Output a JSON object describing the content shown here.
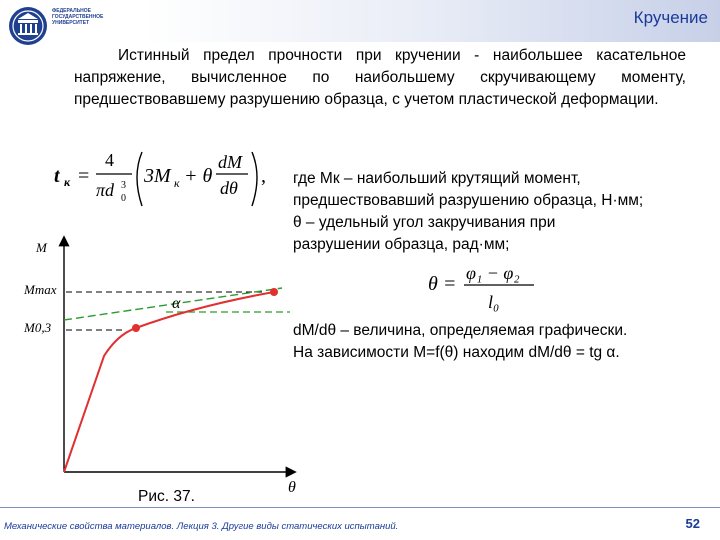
{
  "header": {
    "title": "Кручение",
    "logo_lines": [
      "ФЕДЕРАЛЬНОЕ",
      "ГОСУДАРСТВЕННОЕ",
      "УНИВЕРСИТЕТ"
    ]
  },
  "paragraph": "Истинный предел прочности при кручении - наибольшее касательное напряжение, вычисленное по наибольшему скручивающему моменту, предшествовавшему разрушению образца, с учетом пластической деформации.",
  "formula_main": {
    "lhs": "t",
    "lhs_sub": "к",
    "coef_num": "4",
    "coef_den": "πd",
    "coef_den_sub": "0",
    "coef_den_sup": "3",
    "term1": "3M",
    "term1_sub": "к",
    "plus_theta": "+ θ",
    "deriv_num": "dM",
    "deriv_den": "dθ",
    "trailing": ","
  },
  "where_lines": [
    "где Mк – наибольший крутящий момент,",
    "предшествовавший разрушению образца, Н·мм;",
    "θ – удельный угол закручивания при",
    "разрушении образца, рад·мм;"
  ],
  "theta_formula": {
    "lhs": "θ =",
    "num": "φ₁ − φ₂",
    "den": "l₀"
  },
  "dm_lines": [
    "dM/dθ – величина, определяемая графически.",
    "На зависимости M=f(θ) находим dM/dθ = tg α."
  ],
  "chart_data": {
    "type": "line",
    "ylabel": "M",
    "xlabel": "θ",
    "y_marks": [
      "Mmax",
      "M0,3"
    ],
    "angle_label": "α",
    "caption": "Рис. 37."
  },
  "footer": {
    "text": "Механические свойства материалов. Лекция 3. Другие виды статических испытаний.",
    "page": "52"
  },
  "colors": {
    "accent": "#1a3a9a",
    "curve": "#e03030",
    "tangent": "#2e9a2e"
  }
}
